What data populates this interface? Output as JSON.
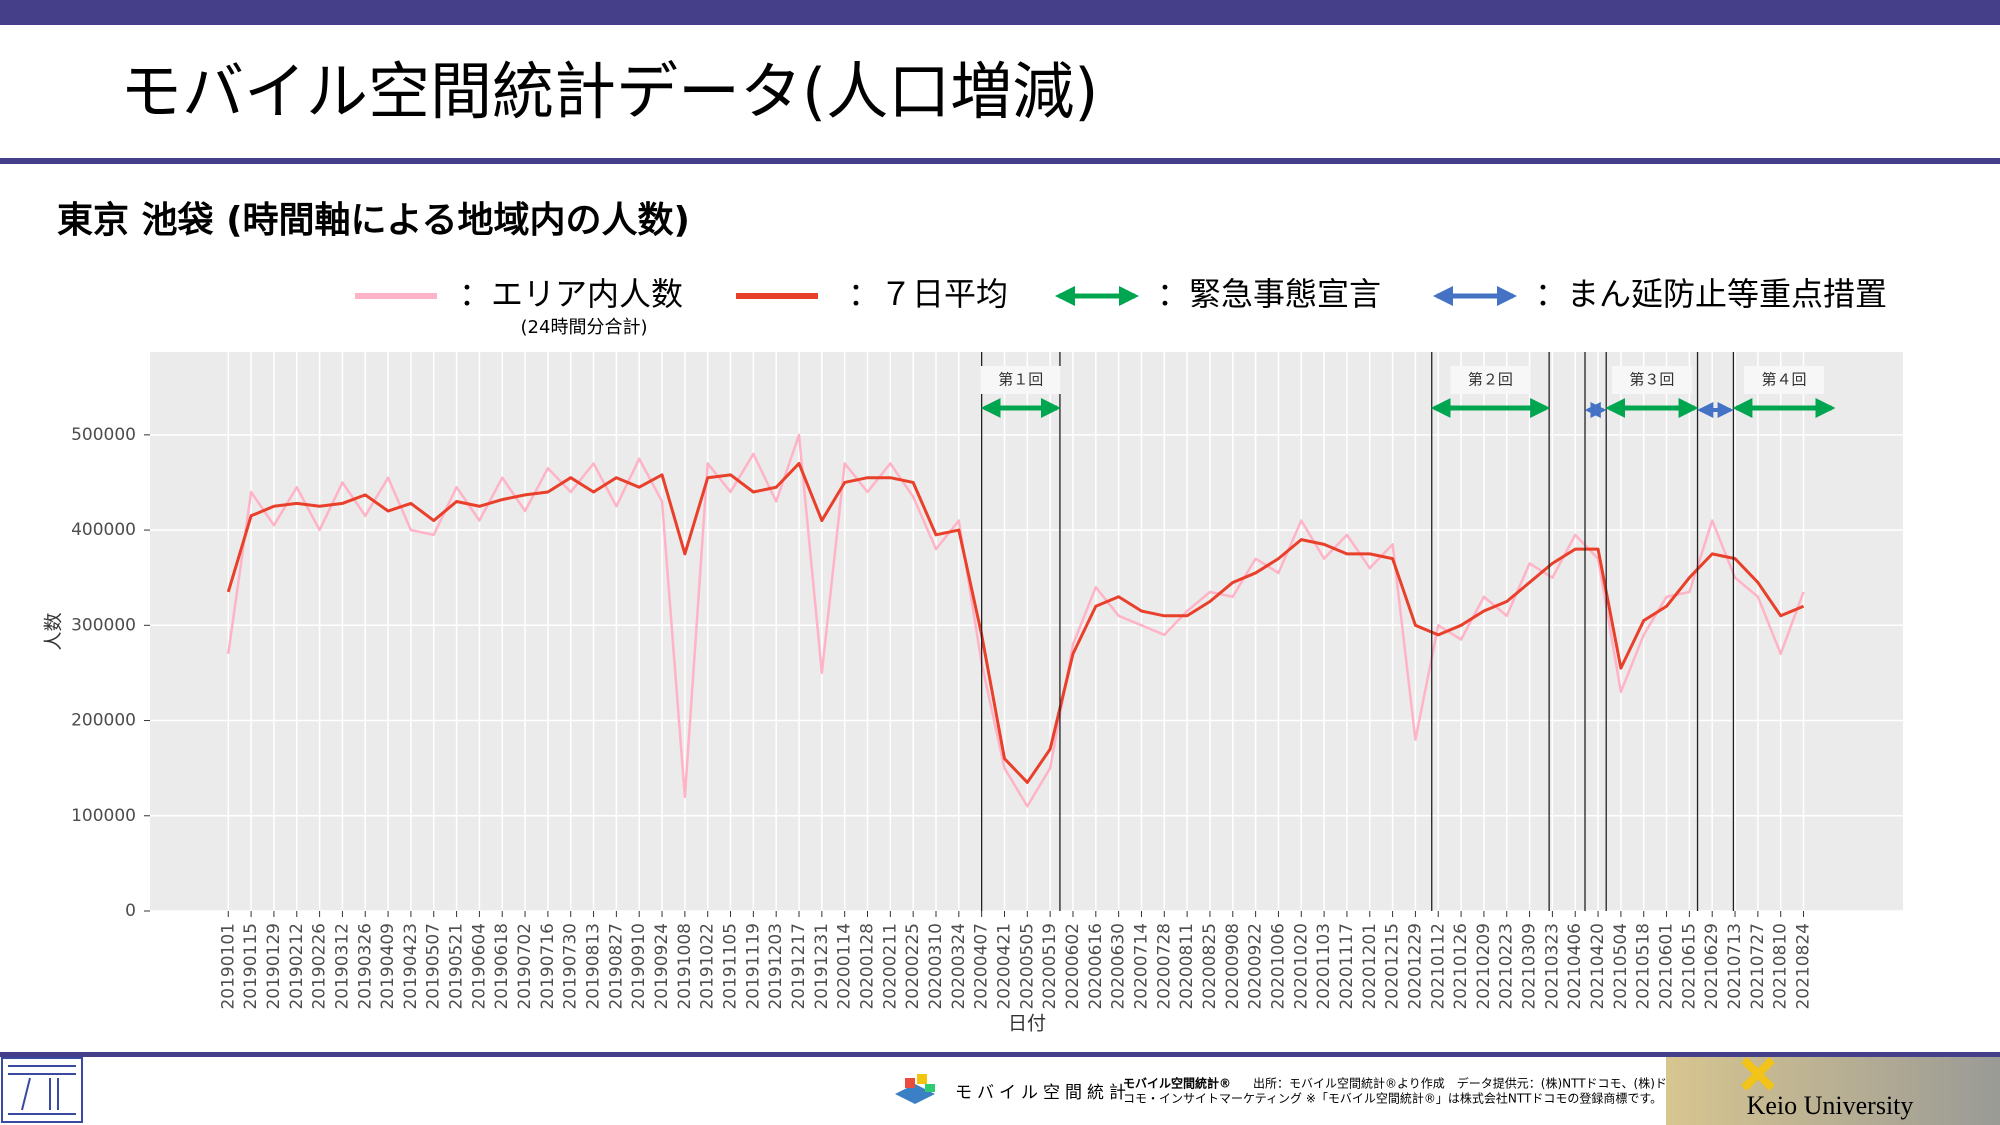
{
  "header": {
    "title": "モバイル空間統計データ(人口増減)",
    "subtitle": "東京 池袋 (時間軸による地域内の人数)"
  },
  "chart_data": {
    "type": "line",
    "x_label": "日付",
    "y_label": "人数",
    "xlim": [
      "20181114",
      "20211024"
    ],
    "ylim": [
      0,
      587000
    ],
    "yticks": [
      0,
      100000,
      200000,
      300000,
      400000,
      500000
    ],
    "grid": true,
    "x": [
      "20190101",
      "20190115",
      "20190129",
      "20190212",
      "20190226",
      "20190312",
      "20190326",
      "20190409",
      "20190423",
      "20190507",
      "20190521",
      "20190604",
      "20190618",
      "20190702",
      "20190716",
      "20190730",
      "20190813",
      "20190827",
      "20190910",
      "20190924",
      "20191008",
      "20191022",
      "20191105",
      "20191119",
      "20191203",
      "20191217",
      "20191231",
      "20200114",
      "20200128",
      "20200211",
      "20200225",
      "20200310",
      "20200324",
      "20200407",
      "20200421",
      "20200505",
      "20200519",
      "20200602",
      "20200616",
      "20200630",
      "20200714",
      "20200728",
      "20200811",
      "20200825",
      "20200908",
      "20200922",
      "20201006",
      "20201020",
      "20201103",
      "20201117",
      "20201201",
      "20201215",
      "20201229",
      "20210112",
      "20210126",
      "20210209",
      "20210223",
      "20210309",
      "20210323",
      "20210406",
      "20210420",
      "20210504",
      "20210518",
      "20210601",
      "20210615",
      "20210629",
      "20210713",
      "20210727",
      "20210810",
      "20210824"
    ],
    "series": [
      {
        "name": "：エリア内人数",
        "note": "(24時間分合計)",
        "color": "#ffb3c6",
        "values": [
          270000,
          440000,
          405000,
          445000,
          400000,
          450000,
          415000,
          455000,
          400000,
          395000,
          445000,
          410000,
          455000,
          420000,
          465000,
          440000,
          470000,
          425000,
          475000,
          430000,
          120000,
          470000,
          440000,
          480000,
          430000,
          500000,
          250000,
          470000,
          440000,
          470000,
          435000,
          380000,
          410000,
          260000,
          150000,
          110000,
          150000,
          280000,
          340000,
          310000,
          300000,
          290000,
          315000,
          335000,
          330000,
          370000,
          355000,
          410000,
          370000,
          395000,
          360000,
          385000,
          180000,
          300000,
          285000,
          330000,
          310000,
          365000,
          350000,
          395000,
          370000,
          230000,
          290000,
          330000,
          335000,
          410000,
          350000,
          330000,
          270000,
          335000
        ]
      },
      {
        "name": "：７日平均",
        "color": "#e8402a",
        "values": [
          335000,
          415000,
          425000,
          428000,
          425000,
          428000,
          437000,
          420000,
          428000,
          410000,
          430000,
          425000,
          432000,
          437000,
          440000,
          455000,
          440000,
          455000,
          445000,
          458000,
          375000,
          455000,
          458000,
          440000,
          445000,
          470000,
          410000,
          450000,
          455000,
          455000,
          450000,
          395000,
          400000,
          290000,
          160000,
          135000,
          170000,
          270000,
          320000,
          330000,
          315000,
          310000,
          310000,
          325000,
          345000,
          355000,
          370000,
          390000,
          385000,
          375000,
          375000,
          370000,
          300000,
          290000,
          300000,
          315000,
          325000,
          345000,
          365000,
          380000,
          380000,
          255000,
          305000,
          320000,
          350000,
          375000,
          370000,
          345000,
          310000,
          320000
        ]
      }
    ],
    "vlines": [
      "20200407",
      "20200525",
      "20210108",
      "20210321",
      "20210412",
      "20210425",
      "20210620",
      "20210712"
    ],
    "period_types": [
      {
        "name": "：緊急事態宣言",
        "color": "#00a550"
      },
      {
        "name": "：まん延防止等重点措置",
        "color": "#4472c4"
      }
    ],
    "periods": [
      {
        "type": 0,
        "label": "第１回",
        "start": "20200407",
        "end": "20200525"
      },
      {
        "type": 0,
        "label": "第２回",
        "start": "20210108",
        "end": "20210321"
      },
      {
        "type": 1,
        "start": "20210412",
        "end": "20210425"
      },
      {
        "type": 0,
        "label": "第３回",
        "start": "20210425",
        "end": "20210620"
      },
      {
        "type": 1,
        "start": "20210620",
        "end": "20210712"
      },
      {
        "type": 0,
        "label": "第４回",
        "start": "20210712",
        "end": "20210912"
      }
    ]
  },
  "footer": {
    "logo_text": "モバイル空間統計",
    "brand": "モバイル空間統計®",
    "source": [
      "出所：モバイル空間統計®より作成　データ提供元：(株)NTTドコモ、(株)ド",
      "コモ・インサイトマーケティング ※「モバイル空間統計®」は株式会社NTTドコモの登録商標です。"
    ],
    "university": "Keio University"
  }
}
